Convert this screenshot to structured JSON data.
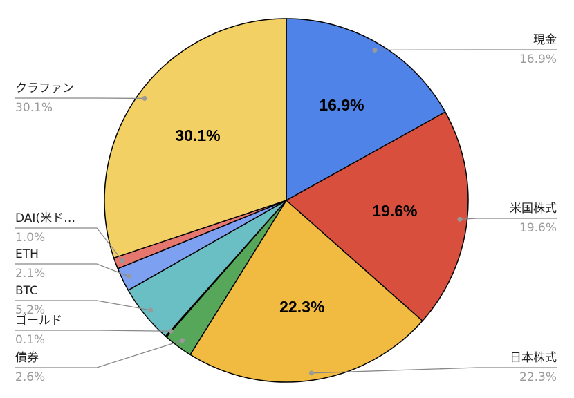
{
  "chart_data": {
    "type": "pie",
    "categories": [
      "現金",
      "米国株式",
      "日本株式",
      "債券",
      "ゴールド",
      "BTC",
      "ETH",
      "DAI(米ド…",
      "クラファン"
    ],
    "values": [
      16.9,
      19.6,
      22.3,
      2.6,
      0.1,
      5.2,
      2.1,
      1.0,
      30.1
    ],
    "value_labels": [
      "16.9%",
      "19.6%",
      "22.3%",
      "2.6%",
      "0.1%",
      "5.2%",
      "2.1%",
      "1.0%",
      "30.1%"
    ],
    "colors": [
      "#5083e8",
      "#d94f3d",
      "#f0bb40",
      "#57a75a",
      "#3a7d44",
      "#6abfc4",
      "#7ea0f0",
      "#e5776f",
      "#f2d064"
    ]
  }
}
